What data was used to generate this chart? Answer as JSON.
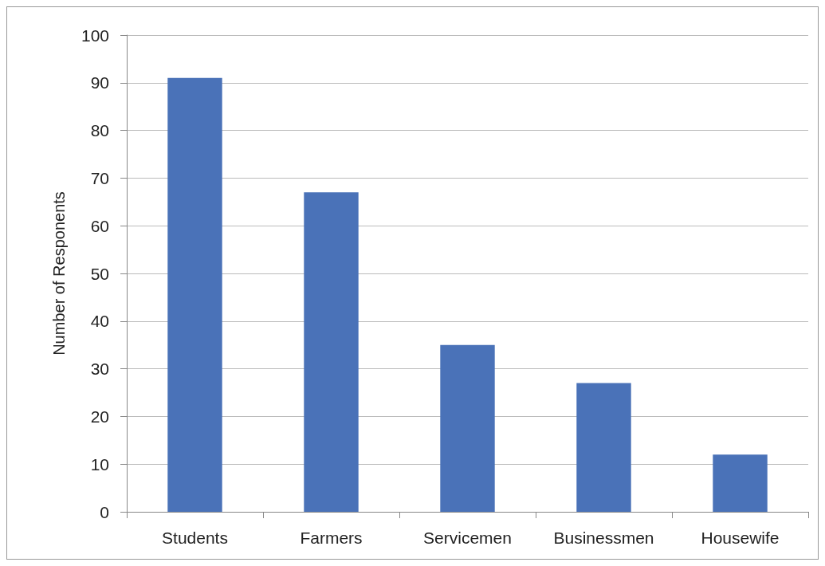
{
  "chart_data": {
    "type": "bar",
    "ylabel": "Number of Responents",
    "categories": [
      "Students",
      "Farmers",
      "Servicemen",
      "Businessmen",
      "Housewife"
    ],
    "values": [
      91,
      67,
      35,
      27,
      12
    ],
    "color": "#4a72b8",
    "ylim": [
      0,
      100
    ],
    "yticks": [
      0,
      10,
      20,
      30,
      40,
      50,
      60,
      70,
      80,
      90,
      100
    ],
    "grid": "y"
  }
}
